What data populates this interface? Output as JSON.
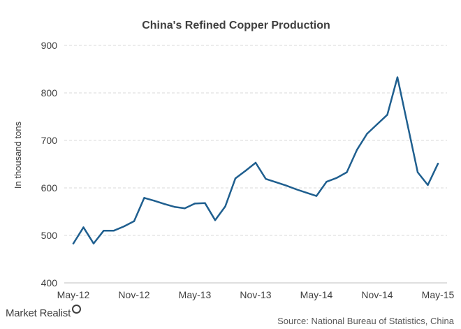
{
  "chart_data": {
    "type": "line",
    "title": "China's  Refined  Copper  Production",
    "ylabel": "In thousand tons",
    "xlabel": "",
    "ylim": [
      400,
      900
    ],
    "yticks": [
      400,
      500,
      600,
      700,
      800,
      900
    ],
    "xtick_labels": [
      "May-12",
      "Nov-12",
      "May-13",
      "Nov-13",
      "May-14",
      "Nov-14",
      "May-15"
    ],
    "x": [
      "May-12",
      "Jun-12",
      "Jul-12",
      "Aug-12",
      "Sep-12",
      "Oct-12",
      "Nov-12",
      "Dec-12",
      "Jan-13",
      "Feb-13",
      "Mar-13",
      "Apr-13",
      "May-13",
      "Jun-13",
      "Jul-13",
      "Aug-13",
      "Sep-13",
      "Oct-13",
      "Nov-13",
      "Dec-13",
      "Jan-14",
      "Feb-14",
      "Mar-14",
      "Apr-14",
      "May-14",
      "Jun-14",
      "Jul-14",
      "Aug-14",
      "Sep-14",
      "Oct-14",
      "Nov-14",
      "Dec-14",
      "Jan-15",
      "Feb-15",
      "Mar-15",
      "Apr-15",
      "May-15"
    ],
    "series": [
      {
        "values": [
          483,
          517,
          483,
          510,
          510,
          519,
          530,
          579,
          573,
          566,
          560,
          557,
          567,
          568,
          532,
          561,
          620,
          636,
          653,
          619,
          612,
          605,
          597,
          590,
          583,
          613,
          621,
          633,
          680,
          714,
          734,
          754,
          833,
          733,
          633,
          606,
          651
        ]
      }
    ],
    "grid": true,
    "legend": "none",
    "colors": {
      "series": "#1f5f8f",
      "text": "#404040"
    }
  },
  "footer": {
    "logo": "Market Realist",
    "source": "Source: National Bureau of Statistics, China"
  }
}
